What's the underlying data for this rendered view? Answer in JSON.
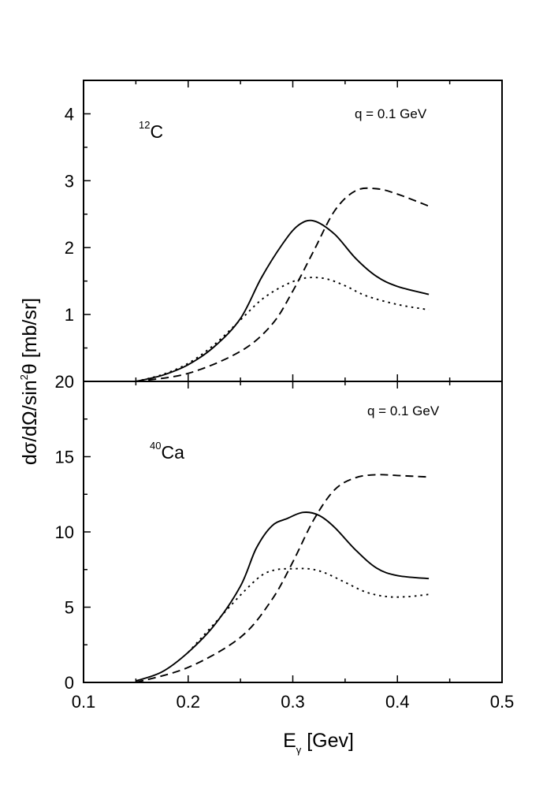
{
  "chart_data": [
    {
      "type": "line",
      "panel": "top",
      "annotation": "q = 0.1 GeV",
      "nucleus": {
        "mass_number": "12",
        "symbol": "C"
      },
      "xlim": [
        0.1,
        0.5
      ],
      "ylim": [
        0,
        4.5
      ],
      "xticks": [
        0.1,
        0.2,
        0.3,
        0.4,
        0.5
      ],
      "yticks": [
        1,
        2,
        3,
        4
      ],
      "ytick_labels": [
        "1",
        "2",
        "3",
        "4"
      ],
      "series": [
        {
          "name": "solid",
          "style": "solid",
          "x": [
            0.15,
            0.175,
            0.2,
            0.225,
            0.25,
            0.27,
            0.29,
            0.305,
            0.32,
            0.34,
            0.36,
            0.38,
            0.4,
            0.43
          ],
          "y": [
            0.0,
            0.09,
            0.25,
            0.52,
            0.94,
            1.55,
            2.05,
            2.33,
            2.4,
            2.2,
            1.84,
            1.57,
            1.42,
            1.3
          ]
        },
        {
          "name": "dotted",
          "style": "dotted",
          "x": [
            0.15,
            0.175,
            0.2,
            0.225,
            0.25,
            0.27,
            0.29,
            0.31,
            0.33,
            0.35,
            0.37,
            0.4,
            0.43
          ],
          "y": [
            0.0,
            0.1,
            0.27,
            0.55,
            0.92,
            1.22,
            1.42,
            1.54,
            1.54,
            1.43,
            1.28,
            1.15,
            1.07
          ]
        },
        {
          "name": "dashed",
          "style": "dashed",
          "x": [
            0.15,
            0.2,
            0.25,
            0.28,
            0.3,
            0.32,
            0.34,
            0.36,
            0.38,
            0.4,
            0.43
          ],
          "y": [
            0.0,
            0.12,
            0.45,
            0.85,
            1.35,
            1.95,
            2.55,
            2.85,
            2.88,
            2.8,
            2.62
          ]
        }
      ]
    },
    {
      "type": "line",
      "panel": "bottom",
      "annotation": "q = 0.1 GeV",
      "nucleus": {
        "mass_number": "40",
        "symbol": "Ca"
      },
      "xlim": [
        0.1,
        0.5
      ],
      "ylim": [
        0,
        20
      ],
      "xticks": [
        0.1,
        0.2,
        0.3,
        0.4,
        0.5
      ],
      "xtick_labels": [
        "0.1",
        "0.2",
        "0.3",
        "0.4",
        "0.5"
      ],
      "yticks": [
        0,
        5,
        10,
        15,
        20
      ],
      "ytick_labels": [
        "0",
        "5",
        "10",
        "15",
        "20"
      ],
      "series": [
        {
          "name": "solid",
          "style": "solid",
          "x": [
            0.15,
            0.175,
            0.2,
            0.225,
            0.25,
            0.265,
            0.28,
            0.295,
            0.31,
            0.325,
            0.34,
            0.36,
            0.38,
            0.4,
            0.43
          ],
          "y": [
            0.1,
            0.7,
            2.0,
            3.8,
            6.4,
            8.9,
            10.4,
            10.9,
            11.3,
            11.1,
            10.3,
            8.8,
            7.6,
            7.1,
            6.9
          ]
        },
        {
          "name": "dotted",
          "style": "dotted",
          "x": [
            0.2,
            0.225,
            0.25,
            0.27,
            0.285,
            0.3,
            0.315,
            0.33,
            0.35,
            0.37,
            0.39,
            0.41,
            0.43
          ],
          "y": [
            2.0,
            3.9,
            5.8,
            7.1,
            7.5,
            7.55,
            7.55,
            7.3,
            6.65,
            6.0,
            5.7,
            5.7,
            5.85
          ]
        },
        {
          "name": "dashed",
          "style": "dashed",
          "x": [
            0.15,
            0.2,
            0.25,
            0.28,
            0.3,
            0.32,
            0.34,
            0.36,
            0.38,
            0.4,
            0.43
          ],
          "y": [
            0.0,
            1.0,
            3.0,
            5.5,
            8.0,
            10.8,
            12.8,
            13.6,
            13.8,
            13.75,
            13.65
          ]
        }
      ]
    }
  ],
  "ylabel": {
    "main": "dσ/dΩ/sin",
    "sup": "2",
    "tail": "θ  [mb/sr]"
  },
  "xlabel": {
    "main": "E",
    "sub": "γ",
    "tail": "  [Gev]"
  }
}
